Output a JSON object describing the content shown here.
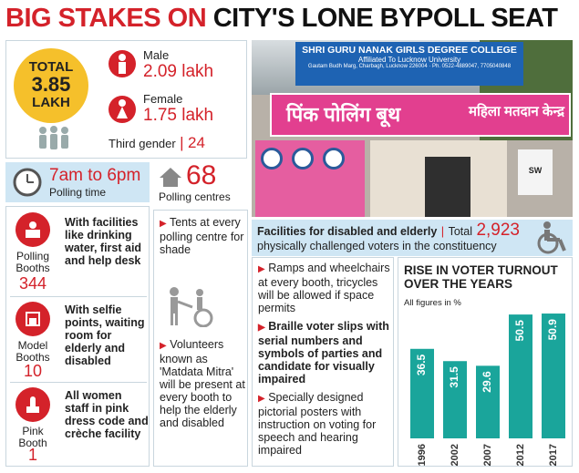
{
  "headline": {
    "part1": "BIG STAKES ON ",
    "part2": "CITY'S LONE BYPOLL SEAT"
  },
  "voters": {
    "total_label": "TOTAL",
    "total_value": "3.85",
    "total_unit": "LAKH",
    "male_label": "Male",
    "male_value": "2.09 lakh",
    "female_label": "Female",
    "female_value": "1.75 lakh",
    "third_label": "Third gender",
    "third_sep": "|",
    "third_value": "24"
  },
  "polling_time": {
    "value": "7am to 6pm",
    "label": "Polling time"
  },
  "polling_centres": {
    "value": "68",
    "label": "Polling centres"
  },
  "booths": [
    {
      "label": "Polling Booths",
      "count": "344",
      "desc": "With facilities like drinking water, first aid and help desk"
    },
    {
      "label": "Model Booths",
      "count": "10",
      "desc": "With selfie points, waiting room for elderly and disabled"
    },
    {
      "label": "Pink Booth",
      "count": "1",
      "desc": "All women staff in pink dress code and crèche facility"
    }
  ],
  "middle_list": [
    "Tents at every polling centre for shade",
    "Volunteers known as 'Matdata Mitra' will be present at every booth to help the elderly and disabled"
  ],
  "photo": {
    "college_name": "SHRI GURU NANAK GIRLS DEGREE COLLEGE",
    "college_aff": "Affiliated To Lucknow University",
    "college_addr": "Gautam Budh Marg, Charbagh, Lucknow 226004 · Ph. 0522-4889047, 7705040848",
    "banner_hindi": "पिंक पोलिंग बूथ",
    "banner_hindi2": "महिला मतदान केन्द्र",
    "sign_text": "SW"
  },
  "disabled": {
    "title": "Facilities for disabled and elderly",
    "sep": "|",
    "total_label": "Total",
    "total_value": "2,923",
    "subtitle": "physically challenged voters in the constituency",
    "items": [
      {
        "text": "Ramps and wheelchairs at every booth, tricycles will be allowed if space permits",
        "bold": false
      },
      {
        "text": "Braille voter slips with serial numbers and symbols of parties and candidate for visually impaired",
        "bold": true
      },
      {
        "text": "Specially designed pictorial posters with instruction on voting for speech and hearing impaired",
        "bold": false
      }
    ]
  },
  "chart_data": {
    "type": "bar",
    "title": "RISE IN VOTER TURNOUT OVER THE YEARS",
    "note": "All figures in %",
    "categories": [
      "1996",
      "2002",
      "2007",
      "2012",
      "2017"
    ],
    "values": [
      36.5,
      31.5,
      29.6,
      50.5,
      50.9
    ],
    "value_labels": [
      "36.5",
      "31.5",
      "29.6",
      "50.5",
      "50.9"
    ],
    "ylim": [
      0,
      55
    ],
    "bar_color": "#1aa59b"
  },
  "colors": {
    "accent": "#d4222a",
    "panel_blue": "#cfe6f4",
    "bar": "#1aa59b"
  }
}
